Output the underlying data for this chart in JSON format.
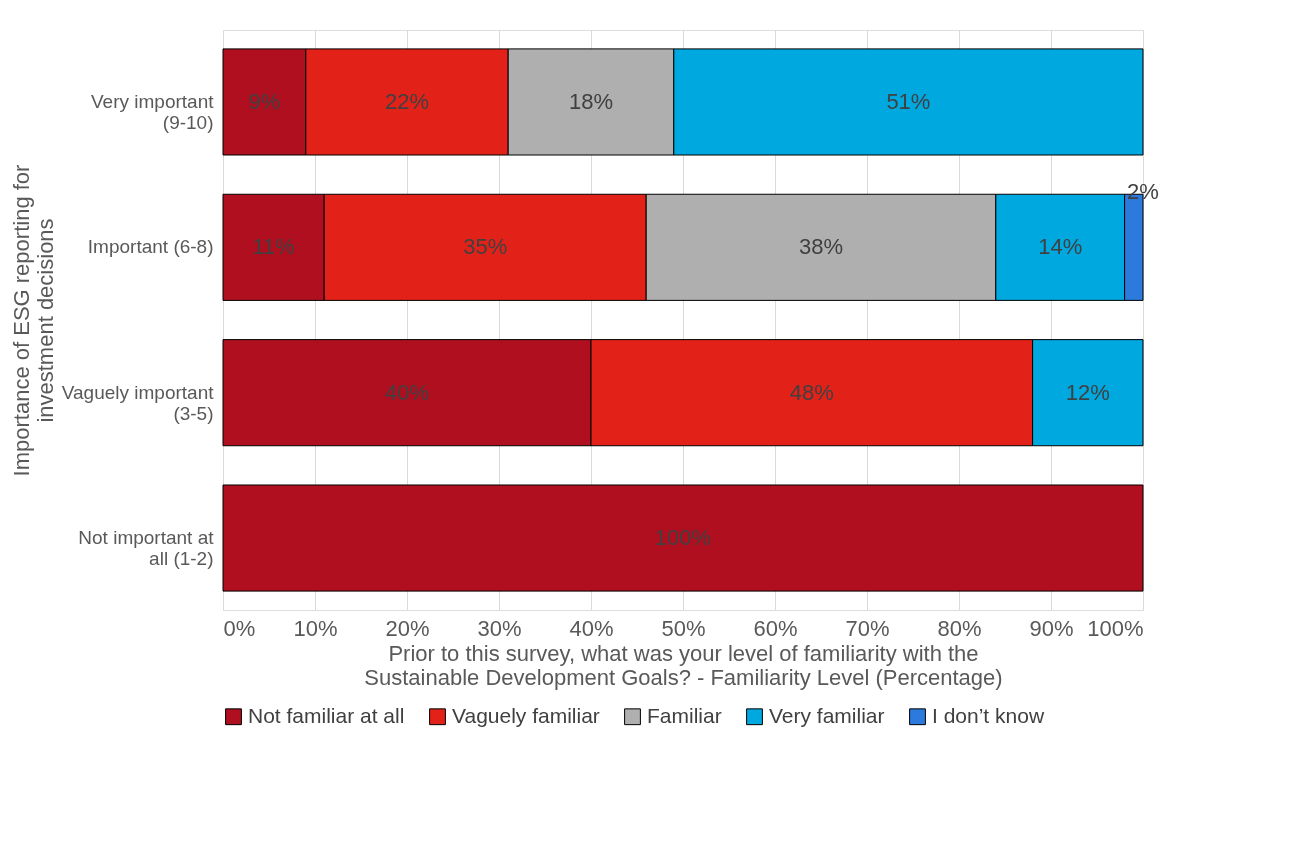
{
  "chart_data": {
    "type": "bar",
    "orientation": "horizontal",
    "stacked": true,
    "categories": [
      "Very important (9-10)",
      "Important (6-8)",
      "Vaguely important (3-5)",
      "Not important at all (1-2)"
    ],
    "series": [
      {
        "name": "Not familiar at all",
        "color": "#b00f20",
        "values": [
          9,
          11,
          40,
          100
        ],
        "value_labels": [
          "9%",
          "11%",
          "40%",
          "100%"
        ]
      },
      {
        "name": "Vaguely familiar",
        "color": "#e22219",
        "values": [
          22,
          35,
          48,
          null
        ],
        "value_labels": [
          "22%",
          "35%",
          "48%",
          null
        ]
      },
      {
        "name": "Familiar",
        "color": "#afafaf",
        "values": [
          18,
          38,
          null,
          null
        ],
        "value_labels": [
          "18%",
          "38%",
          null,
          null
        ]
      },
      {
        "name": "Very familiar",
        "color": "#00a8e0",
        "values": [
          51,
          14,
          12,
          null
        ],
        "value_labels": [
          "51%",
          "14%",
          "12%",
          null
        ]
      },
      {
        "name": "I don’t know",
        "color": "#2c7ade",
        "values": [
          null,
          2,
          null,
          null
        ],
        "value_labels": [
          null,
          "2%",
          null,
          null
        ]
      }
    ],
    "xlim": [
      0,
      100
    ],
    "xticks": [
      {
        "value": 0,
        "label": "0%"
      },
      {
        "value": 10,
        "label": "10%"
      },
      {
        "value": 20,
        "label": "20%"
      },
      {
        "value": 30,
        "label": "30%"
      },
      {
        "value": 40,
        "label": "40%"
      },
      {
        "value": 50,
        "label": "50%"
      },
      {
        "value": 60,
        "label": "60%"
      },
      {
        "value": 70,
        "label": "70%"
      },
      {
        "value": 80,
        "label": "80%"
      },
      {
        "value": 90,
        "label": "90%"
      },
      {
        "value": 100,
        "label": "100%"
      }
    ],
    "xlabel": "Prior to this survey, what was your level of familiarity with the Sustainable Development Goals? - Familiarity Level (Percentage)",
    "ylabel": "Importance of ESG reporting for investment decisions",
    "grid": "x",
    "legend": "bottom"
  }
}
